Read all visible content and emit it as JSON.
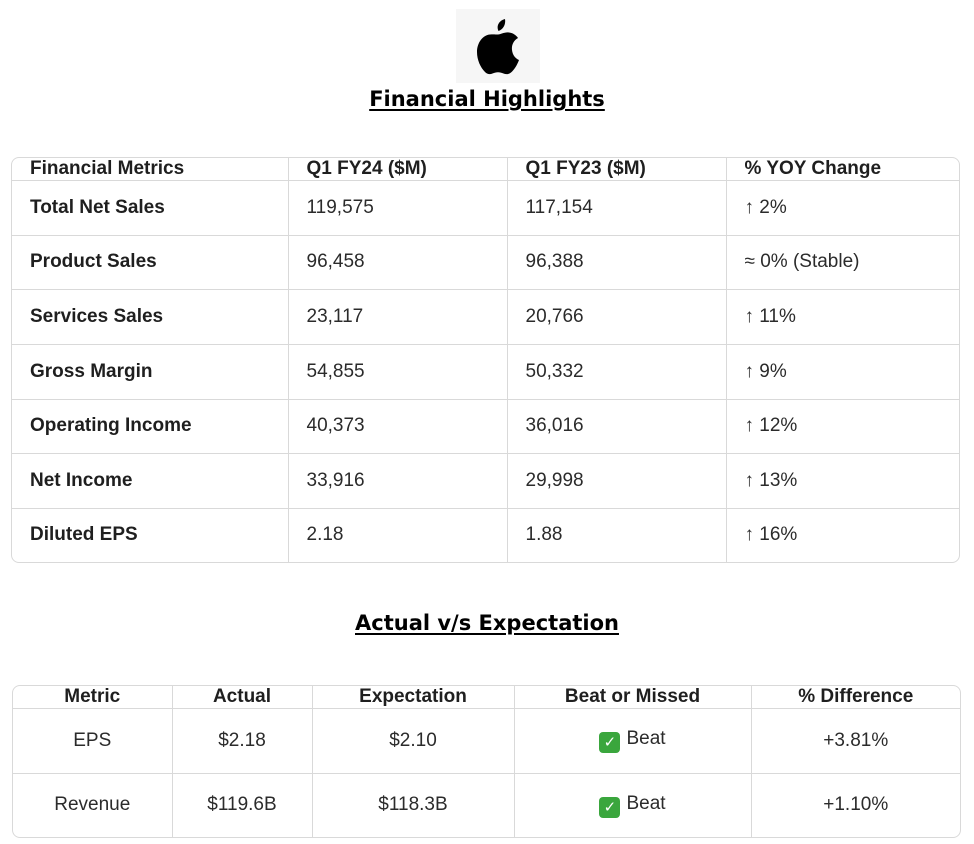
{
  "header": {
    "logo_icon": "apple-logo-icon"
  },
  "financial_highlights": {
    "title": "Financial Highlights",
    "columns": [
      "Financial Metrics",
      "Q1 FY24 ($M)",
      "Q1 FY23 ($M)",
      "% YOY Change"
    ],
    "rows": [
      {
        "metric": "Total Net Sales",
        "q1fy24": "119,575",
        "q1fy23": "117,154",
        "yoy": "↑ 2%"
      },
      {
        "metric": "Product Sales",
        "q1fy24": "96,458",
        "q1fy23": "96,388",
        "yoy": "≈ 0% (Stable)"
      },
      {
        "metric": "Services Sales",
        "q1fy24": "23,117",
        "q1fy23": "20,766",
        "yoy": "↑ 11%"
      },
      {
        "metric": "Gross Margin",
        "q1fy24": "54,855",
        "q1fy23": "50,332",
        "yoy": "↑ 9%"
      },
      {
        "metric": "Operating Income",
        "q1fy24": "40,373",
        "q1fy23": "36,016",
        "yoy": "↑ 12%"
      },
      {
        "metric": "Net Income",
        "q1fy24": "33,916",
        "q1fy23": "29,998",
        "yoy": "↑ 13%"
      },
      {
        "metric": "Diluted EPS",
        "q1fy24": "2.18",
        "q1fy23": "1.88",
        "yoy": "↑ 16%"
      }
    ]
  },
  "actual_vs_expectation": {
    "title": "Actual v/s Expectation",
    "columns": [
      "Metric",
      "Actual",
      "Expectation",
      "Beat or Missed",
      "% Difference"
    ],
    "rows": [
      {
        "metric": "EPS",
        "actual": "$2.18",
        "expectation": "$2.10",
        "result": "Beat",
        "result_icon": "check-mark-icon",
        "difference": "+3.81%"
      },
      {
        "metric": "Revenue",
        "actual": "$119.6B",
        "expectation": "$118.3B",
        "result": "Beat",
        "result_icon": "check-mark-icon",
        "difference": "+1.10%"
      }
    ]
  },
  "colors": {
    "check_green": "#3aa63d",
    "border": "#d9d9d9"
  }
}
